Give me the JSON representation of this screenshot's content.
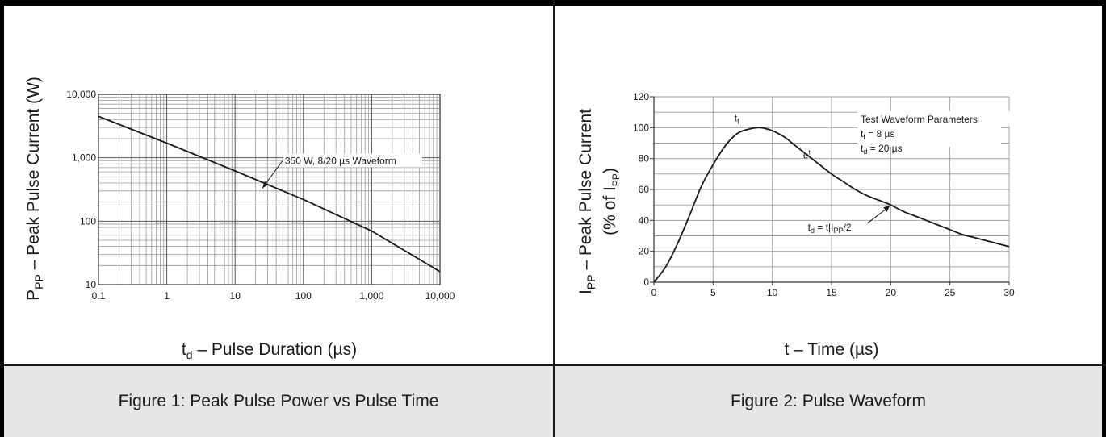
{
  "captions": {
    "figure1": "Figure 1: Peak Pulse Power vs Pulse Time",
    "figure2": "Figure 2: Pulse Waveform"
  },
  "chart_data": [
    {
      "type": "line",
      "xscale": "log",
      "yscale": "log",
      "xlabel": "t_d – Pulse Duration (µs)",
      "ylabel": "P_PP – Peak Pulse Current (W)",
      "xlabel_parts": {
        "main": "t",
        "sub": "d",
        "rest": " – Pulse Duration (µs)"
      },
      "ylabel_parts": {
        "main": "P",
        "sub": "PP",
        "rest": " – Peak Pulse Current (W)"
      },
      "xlim": [
        0.1,
        10000
      ],
      "ylim": [
        10,
        10000
      ],
      "x_ticks": [
        0.1,
        1,
        10,
        100,
        1000,
        10000
      ],
      "x_tick_labels": [
        "0.1",
        "1",
        "10",
        "100",
        "1,000",
        "10,000"
      ],
      "y_ticks": [
        10,
        100,
        1000,
        10000
      ],
      "y_tick_labels": [
        "10",
        "100",
        "1,000",
        "10,000"
      ],
      "grid": true,
      "series": [
        {
          "x": [
            0.1,
            1,
            10,
            100,
            1000,
            10000
          ],
          "y": [
            4500,
            1700,
            620,
            220,
            70,
            16
          ]
        }
      ],
      "annotation": {
        "text": "350 W, 8/20 µs Waveform",
        "x": 25,
        "y": 330
      }
    },
    {
      "type": "line",
      "xlabel": "t – Time (µs)",
      "ylabel_line1": "I_PP – Peak Pulse Current",
      "ylabel_line2": "(% of I_PP)",
      "ylabel_parts": {
        "main": "I",
        "sub": "PP",
        "rest": " – Peak Pulse Current"
      },
      "ylabel2_parts": {
        "pre": "(% of I",
        "sub": "PP",
        "post": ")"
      },
      "xlim": [
        0,
        30
      ],
      "ylim": [
        0,
        120
      ],
      "x_ticks": [
        0,
        5,
        10,
        15,
        20,
        25,
        30
      ],
      "x_tick_labels": [
        "0",
        "5",
        "10",
        "15",
        "20",
        "25",
        "30"
      ],
      "y_ticks": [
        0,
        20,
        40,
        60,
        80,
        100,
        120
      ],
      "y_tick_labels": [
        "0",
        "20",
        "40",
        "60",
        "80",
        "100",
        "120"
      ],
      "grid": true,
      "series": [
        {
          "x": [
            0,
            1,
            2,
            3,
            4,
            5,
            6,
            7,
            8,
            9,
            10,
            11,
            12,
            13,
            14,
            15,
            16,
            17,
            18,
            19,
            20,
            21,
            22,
            23,
            24,
            25,
            26,
            27,
            28,
            29,
            30
          ],
          "y": [
            0,
            10,
            25,
            43,
            62,
            76,
            88,
            96,
            99,
            100,
            98,
            94,
            88,
            82,
            76,
            70,
            65,
            60,
            56,
            53,
            50,
            46,
            43,
            40,
            37,
            34,
            31,
            29,
            27,
            25,
            23
          ]
        }
      ],
      "legend_box": {
        "title": "Test Waveform Parameters",
        "lines": [
          {
            "main": "t",
            "sub": "f",
            "rest": " = 8 µs"
          },
          {
            "main": "t",
            "sub": "d",
            "rest": " = 20 µs"
          }
        ]
      },
      "annotations": {
        "tf_label": {
          "main": "t",
          "sub": "f"
        },
        "decay_label": {
          "main": "e",
          "sup": "t"
        },
        "td_label": {
          "pre": "t",
          "sub": "d",
          "rest": " = t|I",
          "sub2": "PP",
          "post": "/2"
        }
      }
    }
  ]
}
